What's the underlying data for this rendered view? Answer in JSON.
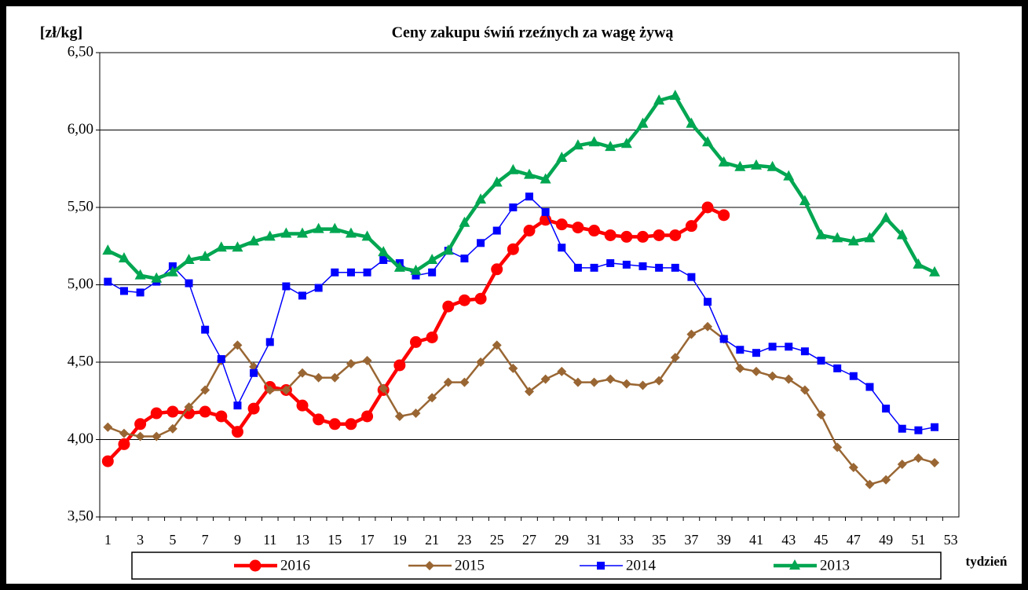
{
  "chart_data": {
    "type": "line",
    "title": "Ceny zakupu świń rzeźnych  za wagę żywą",
    "y_label": "[zł/kg]",
    "x_label": "tydzień",
    "categories": [
      1,
      null,
      3,
      null,
      5,
      null,
      7,
      null,
      9,
      null,
      11,
      null,
      13,
      null,
      15,
      null,
      17,
      null,
      19,
      null,
      21,
      null,
      23,
      null,
      25,
      null,
      27,
      null,
      29,
      null,
      31,
      null,
      33,
      null,
      35,
      null,
      37,
      null,
      39,
      null,
      41,
      null,
      43,
      null,
      45,
      null,
      47,
      null,
      49,
      null,
      51,
      null,
      53
    ],
    "ylim": [
      3.5,
      6.5
    ],
    "yticks": [
      {
        "value": 3.5,
        "label": "3,50"
      },
      {
        "value": 4,
        "label": "4,00"
      },
      {
        "value": 4.5,
        "label": "4,50"
      },
      {
        "value": 5,
        "label": "5,00"
      },
      {
        "value": 5.5,
        "label": "5,50"
      },
      {
        "value": 6,
        "label": "6,00"
      },
      {
        "value": 6.5,
        "label": "6,50"
      }
    ],
    "grid": true,
    "series": [
      {
        "name": "2016",
        "color": "#ff0000",
        "marker": "circle",
        "values": [
          3.86,
          3.97,
          4.1,
          4.17,
          4.18,
          4.17,
          4.18,
          4.15,
          4.05,
          4.2,
          4.34,
          4.32,
          4.22,
          4.13,
          4.1,
          4.1,
          4.15,
          4.32,
          4.48,
          4.63,
          4.66,
          4.86,
          4.9,
          4.91,
          5.1,
          5.23,
          5.35,
          5.42,
          5.39,
          5.37,
          5.35,
          5.32,
          5.31,
          5.31,
          5.32,
          5.32,
          5.38,
          5.5,
          5.45,
          null,
          null,
          null,
          null,
          null,
          null,
          null,
          null,
          null,
          null,
          null,
          null,
          null,
          null
        ]
      },
      {
        "name": "2015",
        "color": "#996633",
        "marker": "diamond",
        "values": [
          4.08,
          4.04,
          4.02,
          4.02,
          4.07,
          4.21,
          4.32,
          4.51,
          4.61,
          4.47,
          4.32,
          4.32,
          4.43,
          4.4,
          4.4,
          4.49,
          4.51,
          4.33,
          4.15,
          4.17,
          4.27,
          4.37,
          4.37,
          4.5,
          4.61,
          4.46,
          4.31,
          4.39,
          4.44,
          4.37,
          4.37,
          4.39,
          4.36,
          4.35,
          4.38,
          4.53,
          4.68,
          4.73,
          4.65,
          4.46,
          4.44,
          4.41,
          4.39,
          4.32,
          4.16,
          3.95,
          3.82,
          3.71,
          3.74,
          3.84,
          3.88,
          3.85,
          null
        ]
      },
      {
        "name": "2014",
        "color": "#0000ff",
        "marker": "square",
        "values": [
          5.02,
          4.96,
          4.95,
          5.02,
          5.12,
          5.01,
          4.71,
          4.52,
          4.22,
          4.43,
          4.63,
          4.99,
          4.93,
          4.98,
          5.08,
          5.08,
          5.08,
          5.16,
          5.14,
          5.06,
          5.08,
          5.22,
          5.17,
          5.27,
          5.35,
          5.5,
          5.57,
          5.47,
          5.24,
          5.11,
          5.11,
          5.14,
          5.13,
          5.12,
          5.11,
          5.11,
          5.05,
          4.89,
          4.65,
          4.58,
          4.56,
          4.6,
          4.6,
          4.57,
          4.51,
          4.46,
          4.41,
          4.34,
          4.2,
          4.07,
          4.06,
          4.08,
          null
        ]
      },
      {
        "name": "2013",
        "color": "#00a651",
        "marker": "triangle",
        "values": [
          5.22,
          5.17,
          5.06,
          5.04,
          5.08,
          5.16,
          5.18,
          5.24,
          5.24,
          5.28,
          5.31,
          5.33,
          5.33,
          5.36,
          5.36,
          5.33,
          5.31,
          5.21,
          5.11,
          5.09,
          5.16,
          5.22,
          5.4,
          5.55,
          5.66,
          5.74,
          5.71,
          5.68,
          5.82,
          5.9,
          5.92,
          5.89,
          5.91,
          6.04,
          6.19,
          6.22,
          6.04,
          5.92,
          5.79,
          5.76,
          5.77,
          5.76,
          5.7,
          5.54,
          5.32,
          5.3,
          5.28,
          5.3,
          5.43,
          5.32,
          5.13,
          5.08,
          null
        ]
      }
    ]
  }
}
